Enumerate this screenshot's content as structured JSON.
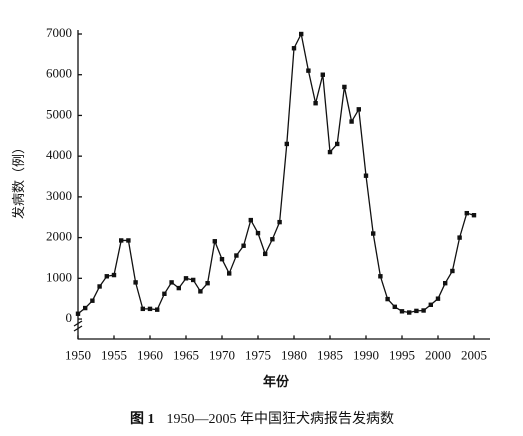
{
  "chart_data": {
    "type": "line",
    "y_label": "发病数（例）",
    "x_label": "年份",
    "figure_label": "图 1",
    "title": "1950—2005 年中国狂犬病报告发病数",
    "x": [
      1950,
      1951,
      1952,
      1953,
      1954,
      1955,
      1956,
      1957,
      1958,
      1959,
      1960,
      1961,
      1962,
      1963,
      1964,
      1965,
      1966,
      1967,
      1968,
      1969,
      1970,
      1971,
      1972,
      1973,
      1974,
      1975,
      1976,
      1977,
      1978,
      1979,
      1980,
      1981,
      1982,
      1983,
      1984,
      1985,
      1986,
      1987,
      1988,
      1989,
      1990,
      1991,
      1992,
      1993,
      1994,
      1995,
      1996,
      1997,
      1998,
      1999,
      2000,
      2001,
      2002,
      2003,
      2004,
      2005
    ],
    "series": [
      {
        "color": "#111111",
        "values": [
          130,
          270,
          450,
          800,
          1050,
          1080,
          1930,
          1930,
          900,
          250,
          250,
          230,
          620,
          900,
          760,
          1000,
          960,
          680,
          880,
          1910,
          1470,
          1120,
          1560,
          1800,
          2430,
          2110,
          1600,
          1960,
          2380,
          4300,
          6650,
          7000,
          6100,
          5300,
          6000,
          4100,
          4300,
          5700,
          4850,
          5150,
          3520,
          2100,
          1050,
          490,
          300,
          190,
          160,
          200,
          210,
          350,
          500,
          880,
          1180,
          2000,
          2600,
          2550
        ]
      }
    ],
    "xlim": [
      1950,
      2005
    ],
    "xticks": [
      1950,
      1955,
      1960,
      1965,
      1970,
      1975,
      1980,
      1985,
      1990,
      1995,
      2000,
      2005
    ],
    "ylim": [
      -500,
      7000
    ],
    "yticks": [
      0,
      1000,
      2000,
      3000,
      4000,
      5000,
      6000,
      7000
    ]
  }
}
